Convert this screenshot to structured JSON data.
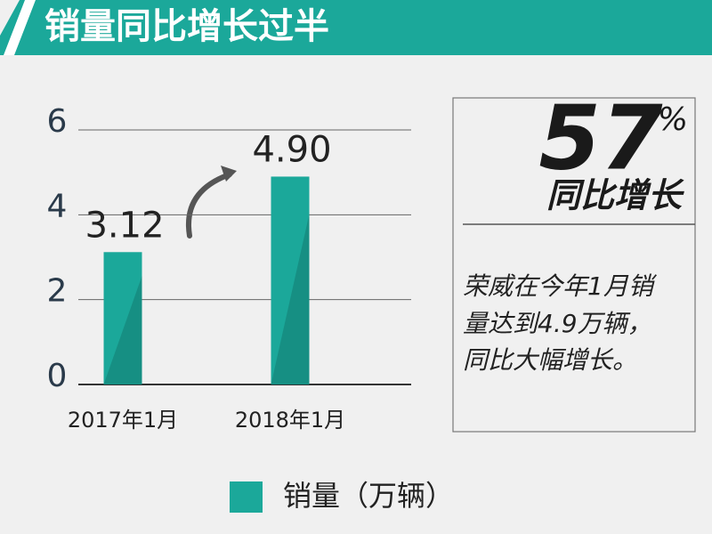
{
  "chart_data": {
    "type": "bar",
    "title": "销量同比增长过半",
    "categories": [
      "2017年1月",
      "2018年1月"
    ],
    "series": [
      {
        "name": "销量（万辆）",
        "color": "#1ba89a",
        "values": [
          3.12,
          4.9
        ],
        "value_labels": [
          "3.12",
          "4.90"
        ]
      }
    ],
    "ylim": [
      0,
      6
    ],
    "yticks": [
      0,
      2,
      4,
      6
    ],
    "grid": true,
    "annotation": {
      "number": "57",
      "unit": "%",
      "caption": "同比增长",
      "text_lines": [
        "荣威在今年1月销",
        "量达到4.9万辆，",
        "同比大幅增长。"
      ]
    }
  }
}
